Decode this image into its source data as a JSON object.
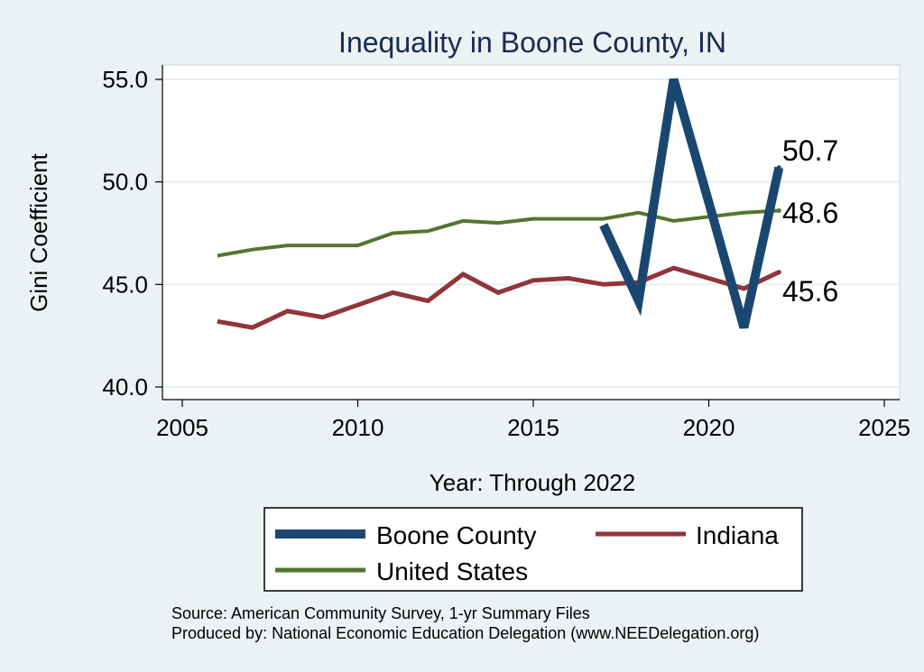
{
  "chart_data": {
    "type": "line",
    "title": "Inequality in Boone County, IN",
    "xlabel": "Year: Through 2022",
    "ylabel": "Gini Coefficient",
    "xlim": [
      2005,
      2025
    ],
    "ylim": [
      40.0,
      55.0
    ],
    "x_ticks": [
      "2005",
      "2010",
      "2015",
      "2020",
      "2025"
    ],
    "y_ticks": [
      "40.0",
      "45.0",
      "50.0",
      "55.0"
    ],
    "grid": true,
    "legend_position": "bottom",
    "series": [
      {
        "name": "Boone County",
        "color": "#1a476f",
        "x": [
          2017,
          2018,
          2019,
          2020,
          2021,
          2022
        ],
        "y": [
          47.9,
          44.2,
          55.0,
          49.0,
          42.9,
          50.7
        ],
        "end_label": "50.7"
      },
      {
        "name": "Indiana",
        "color": "#90353b",
        "x": [
          2006,
          2007,
          2008,
          2009,
          2010,
          2011,
          2012,
          2013,
          2014,
          2015,
          2016,
          2017,
          2018,
          2019,
          2020,
          2021,
          2022
        ],
        "y": [
          43.2,
          42.9,
          43.7,
          43.4,
          44.0,
          44.6,
          44.2,
          45.5,
          44.6,
          45.2,
          45.3,
          45.0,
          45.1,
          45.8,
          45.3,
          44.8,
          45.6
        ],
        "end_label": "45.6"
      },
      {
        "name": "United States",
        "color": "#55752f",
        "x": [
          2006,
          2007,
          2008,
          2009,
          2010,
          2011,
          2012,
          2013,
          2014,
          2015,
          2016,
          2017,
          2018,
          2019,
          2020,
          2021,
          2022
        ],
        "y": [
          46.4,
          46.7,
          46.9,
          46.9,
          46.9,
          47.5,
          47.6,
          48.1,
          48.0,
          48.2,
          48.2,
          48.2,
          48.5,
          48.1,
          48.3,
          48.5,
          48.6
        ],
        "end_label": "48.6"
      }
    ]
  },
  "notes": {
    "source": "Source: American Community Survey, 1-yr Summary Files",
    "producer": "Produced by: National Economic Education Delegation (www.NEEDelegation.org)"
  }
}
